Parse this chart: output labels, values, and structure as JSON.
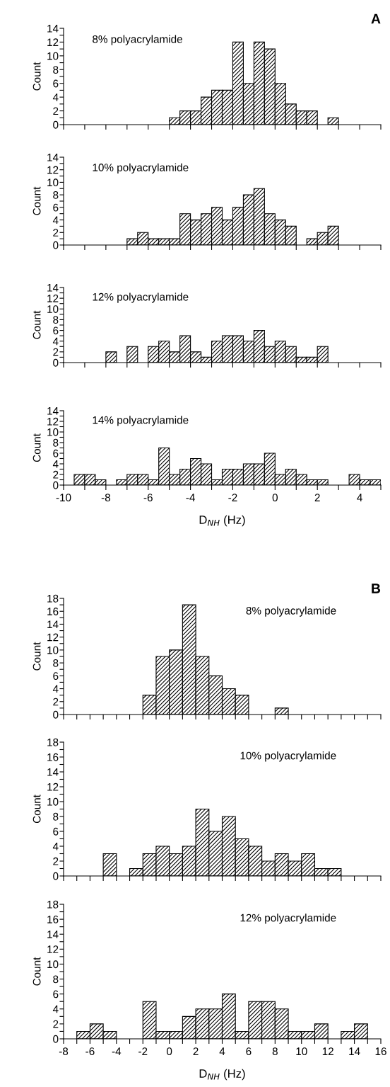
{
  "chart_data": [
    {
      "type": "histogram",
      "title": "8% polyacrylamide",
      "ylabel": "Count",
      "annotations": [
        "A"
      ],
      "color": "#000000",
      "tick_labels": "y",
      "bins": [
        -5,
        -4.5,
        -4,
        -3.5,
        -3,
        -2.5,
        -2,
        -1.5,
        -1,
        -0.5,
        0,
        0.5,
        1,
        1.5,
        2,
        2.5,
        3
      ],
      "values": [
        1,
        2,
        2,
        4,
        5,
        5,
        12,
        6,
        12,
        11,
        6,
        3,
        2,
        2,
        null,
        1
      ],
      "xlim": [
        -10,
        5
      ],
      "xticks": [
        -10,
        {
          "value": -9,
          "label": null
        },
        -8,
        {
          "value": -7,
          "label": null
        },
        -6,
        {
          "value": -5,
          "label": null
        },
        -4,
        {
          "value": -3,
          "label": null
        },
        -2,
        {
          "value": -1,
          "label": null
        },
        0,
        {
          "value": 1,
          "label": null
        },
        2,
        {
          "value": 3,
          "label": null
        },
        4,
        {
          "value": 5,
          "label": null
        }
      ],
      "ylim": [
        0,
        14
      ],
      "yticks": [
        0,
        {
          "value": 1,
          "label": null
        },
        2,
        {
          "value": 3,
          "label": null
        },
        4,
        {
          "value": 5,
          "label": null
        },
        6,
        {
          "value": 7,
          "label": null
        },
        8,
        {
          "value": 9,
          "label": null
        },
        10,
        {
          "value": 11,
          "label": null
        },
        12,
        {
          "value": 13,
          "label": null
        },
        14
      ]
    },
    {
      "type": "histogram",
      "title": "10% polyacrylamide",
      "ylabel": "Count",
      "color": "#000000",
      "tick_labels": "y",
      "bins": [
        -7,
        -6.5,
        -6,
        -5.5,
        -5,
        -4.5,
        -4,
        -3.5,
        -3,
        -2.5,
        -2,
        -1.5,
        -1,
        -0.5,
        0,
        0.5,
        1,
        1.5,
        2,
        2.5,
        3
      ],
      "values": [
        1,
        2,
        1,
        1,
        1,
        5,
        4,
        5,
        6,
        4,
        6,
        8,
        9,
        5,
        4,
        3,
        null,
        1,
        2,
        3
      ],
      "xlim": [
        -10,
        5
      ],
      "xticks": [
        -10,
        {
          "value": -9,
          "label": null
        },
        -8,
        {
          "value": -7,
          "label": null
        },
        -6,
        {
          "value": -5,
          "label": null
        },
        -4,
        {
          "value": -3,
          "label": null
        },
        -2,
        {
          "value": -1,
          "label": null
        },
        0,
        {
          "value": 1,
          "label": null
        },
        2,
        {
          "value": 3,
          "label": null
        },
        4,
        {
          "value": 5,
          "label": null
        }
      ],
      "ylim": [
        0,
        14
      ],
      "yticks": [
        0,
        {
          "value": 1,
          "label": null
        },
        2,
        {
          "value": 3,
          "label": null
        },
        4,
        {
          "value": 5,
          "label": null
        },
        6,
        {
          "value": 7,
          "label": null
        },
        8,
        {
          "value": 9,
          "label": null
        },
        10,
        {
          "value": 11,
          "label": null
        },
        12,
        {
          "value": 13,
          "label": null
        },
        14
      ]
    },
    {
      "type": "histogram",
      "title": "12% polyacrylamide",
      "ylabel": "Count",
      "color": "#000000",
      "tick_labels": "y",
      "bins": [
        -8,
        -7.5,
        -7,
        -6.5,
        -6,
        -5.5,
        -5,
        -4.5,
        -4,
        -3.5,
        -3,
        -2.5,
        -2,
        -1.5,
        -1,
        -0.5,
        0,
        0.5,
        1,
        1.5,
        2,
        2.5
      ],
      "values": [
        2,
        null,
        3,
        null,
        3,
        4,
        2,
        5,
        2,
        1,
        4,
        5,
        5,
        4,
        6,
        3,
        4,
        3,
        1,
        1,
        3
      ],
      "xlim": [
        -10,
        5
      ],
      "xticks": [
        -10,
        {
          "value": -9,
          "label": null
        },
        -8,
        {
          "value": -7,
          "label": null
        },
        -6,
        {
          "value": -5,
          "label": null
        },
        -4,
        {
          "value": -3,
          "label": null
        },
        -2,
        {
          "value": -1,
          "label": null
        },
        0,
        {
          "value": 1,
          "label": null
        },
        2,
        {
          "value": 3,
          "label": null
        },
        4,
        {
          "value": 5,
          "label": null
        }
      ],
      "ylim": [
        0,
        14
      ],
      "yticks": [
        0,
        {
          "value": 1,
          "label": null
        },
        2,
        {
          "value": 3,
          "label": null
        },
        4,
        {
          "value": 5,
          "label": null
        },
        6,
        {
          "value": 7,
          "label": null
        },
        8,
        {
          "value": 9,
          "label": null
        },
        10,
        {
          "value": 11,
          "label": null
        },
        12,
        {
          "value": 13,
          "label": null
        },
        14
      ]
    },
    {
      "type": "histogram",
      "title": "14% polyacrylamide",
      "ylabel": "Count",
      "xlabel": "D$_{NH}$ (Hz)",
      "color": "#000000",
      "bins": [
        -9.5,
        -9,
        -8.5,
        -8,
        -7.5,
        -7,
        -6.5,
        -6,
        -5.5,
        -5,
        -4.5,
        -4,
        -3.5,
        -3,
        -2.5,
        -2,
        -1.5,
        -1,
        -0.5,
        0,
        0.5,
        1,
        1.5,
        2,
        2.5,
        3,
        3.5,
        4,
        4.5,
        5
      ],
      "values": [
        2,
        2,
        1,
        null,
        1,
        2,
        2,
        1,
        7,
        2,
        3,
        5,
        4,
        1,
        3,
        3,
        4,
        4,
        6,
        2,
        3,
        2,
        1,
        1,
        null,
        null,
        2,
        1,
        1
      ],
      "xlim": [
        -10,
        5
      ],
      "xticks": [
        -10,
        {
          "value": -9,
          "label": null
        },
        -8,
        {
          "value": -7,
          "label": null
        },
        -6,
        {
          "value": -5,
          "label": null
        },
        -4,
        {
          "value": -3,
          "label": null
        },
        -2,
        {
          "value": -1,
          "label": null
        },
        0,
        {
          "value": 1,
          "label": null
        },
        2,
        {
          "value": 3,
          "label": null
        },
        4,
        {
          "value": 5,
          "label": null
        }
      ],
      "ylim": [
        0,
        14
      ],
      "yticks": [
        0,
        {
          "value": 1,
          "label": null
        },
        2,
        {
          "value": 3,
          "label": null
        },
        4,
        {
          "value": 5,
          "label": null
        },
        6,
        {
          "value": 7,
          "label": null
        },
        8,
        {
          "value": 9,
          "label": null
        },
        10,
        {
          "value": 11,
          "label": null
        },
        12,
        {
          "value": 13,
          "label": null
        },
        14
      ]
    },
    {
      "type": "histogram",
      "title": "8% polyacrylamide",
      "ylabel": "Count",
      "annotations": [
        "B"
      ],
      "color": "#000000",
      "tick_labels": "y",
      "bins": [
        -2,
        -1,
        0,
        1,
        2,
        3,
        4,
        5,
        6,
        7,
        8,
        9
      ],
      "values": [
        3,
        9,
        10,
        17,
        9,
        6,
        4,
        3,
        null,
        null,
        1
      ],
      "xlim": [
        -8,
        16
      ],
      "xticks": [
        -8,
        {
          "value": -7,
          "label": null
        },
        -6,
        {
          "value": -5,
          "label": null
        },
        -4,
        {
          "value": -3,
          "label": null
        },
        -2,
        {
          "value": -1,
          "label": null
        },
        0,
        {
          "value": 1,
          "label": null
        },
        2,
        {
          "value": 3,
          "label": null
        },
        4,
        {
          "value": 5,
          "label": null
        },
        6,
        {
          "value": 7,
          "label": null
        },
        8,
        {
          "value": 9,
          "label": null
        },
        10,
        {
          "value": 11,
          "label": null
        },
        12,
        {
          "value": 13,
          "label": null
        },
        14,
        {
          "value": 15,
          "label": null
        },
        16
      ],
      "ylim": [
        0,
        18
      ],
      "yticks": [
        0,
        {
          "value": 1,
          "label": null
        },
        2,
        {
          "value": 3,
          "label": null
        },
        4,
        {
          "value": 5,
          "label": null
        },
        6,
        {
          "value": 7,
          "label": null
        },
        8,
        {
          "value": 9,
          "label": null
        },
        10,
        {
          "value": 11,
          "label": null
        },
        12,
        {
          "value": 13,
          "label": null
        },
        14,
        {
          "value": 15,
          "label": null
        },
        16,
        {
          "value": 17,
          "label": null
        },
        18
      ]
    },
    {
      "type": "histogram",
      "title": "10% polyacrylamide",
      "ylabel": "Count",
      "color": "#000000",
      "tick_labels": "y",
      "bins": [
        -5,
        -4,
        -3,
        -2,
        -1,
        0,
        1,
        2,
        3,
        4,
        5,
        6,
        7,
        8,
        9,
        10,
        11,
        12,
        13
      ],
      "values": [
        3,
        null,
        1,
        3,
        4,
        3,
        4,
        9,
        6,
        8,
        5,
        4,
        2,
        3,
        2,
        3,
        1,
        1
      ],
      "xlim": [
        -8,
        16
      ],
      "xticks": [
        -8,
        {
          "value": -7,
          "label": null
        },
        -6,
        {
          "value": -5,
          "label": null
        },
        -4,
        {
          "value": -3,
          "label": null
        },
        -2,
        {
          "value": -1,
          "label": null
        },
        0,
        {
          "value": 1,
          "label": null
        },
        2,
        {
          "value": 3,
          "label": null
        },
        4,
        {
          "value": 5,
          "label": null
        },
        6,
        {
          "value": 7,
          "label": null
        },
        8,
        {
          "value": 9,
          "label": null
        },
        10,
        {
          "value": 11,
          "label": null
        },
        12,
        {
          "value": 13,
          "label": null
        },
        14,
        {
          "value": 15,
          "label": null
        },
        16
      ],
      "ylim": [
        0,
        18
      ],
      "yticks": [
        0,
        {
          "value": 1,
          "label": null
        },
        2,
        {
          "value": 3,
          "label": null
        },
        4,
        {
          "value": 5,
          "label": null
        },
        6,
        {
          "value": 7,
          "label": null
        },
        8,
        {
          "value": 9,
          "label": null
        },
        10,
        {
          "value": 11,
          "label": null
        },
        12,
        {
          "value": 13,
          "label": null
        },
        14,
        {
          "value": 15,
          "label": null
        },
        16,
        {
          "value": 17,
          "label": null
        },
        18
      ]
    },
    {
      "type": "histogram",
      "title": "12% polyacrylamide",
      "ylabel": "Count",
      "xlabel": "D$_{NH}$ (Hz)",
      "color": "#000000",
      "bins": [
        -7,
        -6,
        -5,
        -4,
        -3,
        -2,
        -1,
        0,
        1,
        2,
        3,
        4,
        5,
        6,
        7,
        8,
        9,
        10,
        11,
        12,
        13,
        14,
        15
      ],
      "values": [
        1,
        2,
        1,
        null,
        null,
        5,
        1,
        1,
        3,
        4,
        4,
        6,
        1,
        5,
        5,
        4,
        1,
        1,
        2,
        null,
        1,
        2
      ],
      "xlim": [
        -8,
        16
      ],
      "xticks": [
        -8,
        {
          "value": -7,
          "label": null
        },
        -6,
        {
          "value": -5,
          "label": null
        },
        -4,
        {
          "value": -3,
          "label": null
        },
        -2,
        {
          "value": -1,
          "label": null
        },
        0,
        {
          "value": 1,
          "label": null
        },
        2,
        {
          "value": 3,
          "label": null
        },
        4,
        {
          "value": 5,
          "label": null
        },
        6,
        {
          "value": 7,
          "label": null
        },
        8,
        {
          "value": 9,
          "label": null
        },
        10,
        {
          "value": 11,
          "label": null
        },
        12,
        {
          "value": 13,
          "label": null
        },
        14,
        {
          "value": 15,
          "label": null
        },
        16
      ],
      "ylim": [
        0,
        18
      ],
      "yticks": [
        0,
        {
          "value": 1,
          "label": null
        },
        2,
        {
          "value": 3,
          "label": null
        },
        4,
        {
          "value": 5,
          "label": null
        },
        6,
        {
          "value": 7,
          "label": null
        },
        8,
        {
          "value": 9,
          "label": null
        },
        10,
        {
          "value": 11,
          "label": null
        },
        12,
        {
          "value": 13,
          "label": null
        },
        14,
        {
          "value": 15,
          "label": null
        },
        16,
        {
          "value": 17,
          "label": null
        },
        18
      ]
    }
  ]
}
